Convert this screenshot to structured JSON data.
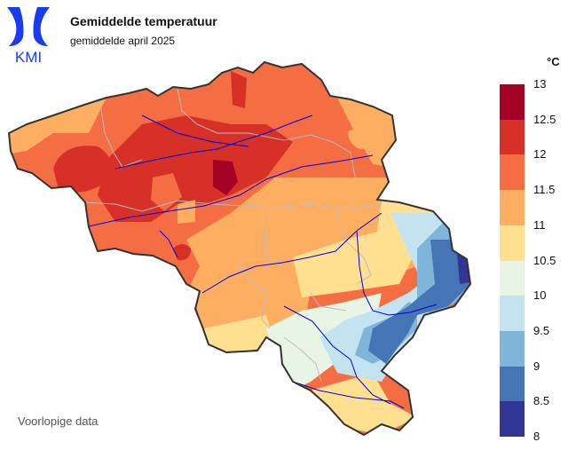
{
  "header": {
    "title": "Gemiddelde temperatuur",
    "subtitle": "gemiddelde april 2025"
  },
  "logo": {
    "text": "KMI",
    "icon": "kmi-logo-icon",
    "color": "#1a3cf0"
  },
  "legend": {
    "unit": "°C",
    "ticks": [
      "13",
      "12.5",
      "12",
      "11.5",
      "11",
      "10.5",
      "10",
      "9.5",
      "9",
      "8.5",
      "8"
    ],
    "bins": [
      {
        "from": 12.5,
        "to": 13,
        "color": "#a50026"
      },
      {
        "from": 12,
        "to": 12.5,
        "color": "#d73027"
      },
      {
        "from": 11.5,
        "to": 12,
        "color": "#f46d43"
      },
      {
        "from": 11,
        "to": 11.5,
        "color": "#fdae61"
      },
      {
        "from": 10.5,
        "to": 11,
        "color": "#fee090"
      },
      {
        "from": 10,
        "to": 10.5,
        "color": "#e8f5e4"
      },
      {
        "from": 9.5,
        "to": 10,
        "color": "#c3e3f1"
      },
      {
        "from": 9,
        "to": 9.5,
        "color": "#7fb5d9"
      },
      {
        "from": 8.5,
        "to": 9,
        "color": "#4575b4"
      },
      {
        "from": 8,
        "to": 8.5,
        "color": "#313695"
      }
    ]
  },
  "note": "Voorlopige data"
}
